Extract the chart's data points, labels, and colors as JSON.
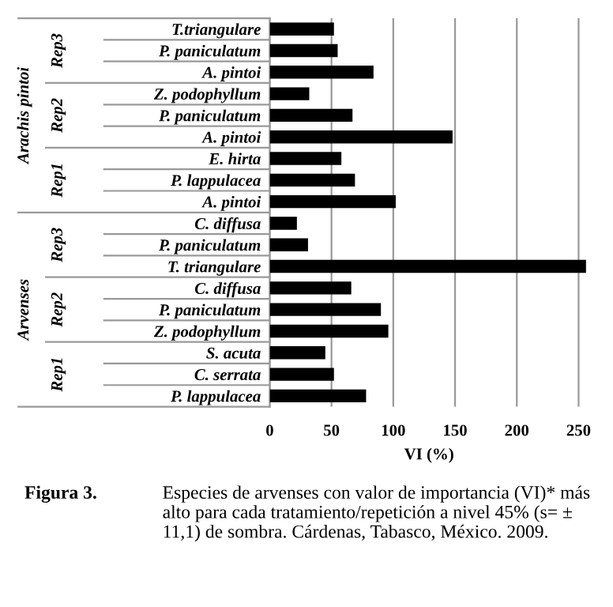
{
  "chart_data": {
    "type": "bar",
    "orientation": "horizontal",
    "xlabel": "VI (%)",
    "categories": [
      "T.triangulare",
      "P. paniculatum",
      "A. pintoi",
      "Z. podophyllum",
      "P. paniculatum",
      "A. pintoi",
      "E. hirta",
      "P. lappulacea",
      "A. pintoi",
      "C. diffusa",
      "P. paniculatum",
      "T. triangulare",
      "C. diffusa",
      "P. paniculatum",
      "Z. podophyllum",
      "S. acuta",
      "C. serrata",
      "P. lappulacea"
    ],
    "values": [
      52,
      55,
      84,
      32,
      67,
      148,
      58,
      69,
      102,
      22,
      31,
      256,
      66,
      90,
      96,
      45,
      52,
      78
    ],
    "color": "#000000",
    "xlim": [
      0,
      258
    ],
    "xticks": [
      0,
      50,
      100,
      150,
      200,
      250
    ],
    "grid": "x",
    "legend": false,
    "annotations": [
      "Rep3",
      "Rep2",
      "Rep1",
      "Rep3",
      "Rep2",
      "Rep1",
      "Arachis pintoi",
      "Arvenses",
      "Figura 3.",
      "Especies de arvenses con valor de importancia (VI)* más alto para cada tratamiento/repetición a nivel 45% (s= ± 11,1) de sombra. Cárdenas, Tabasco, México. 2009."
    ]
  }
}
